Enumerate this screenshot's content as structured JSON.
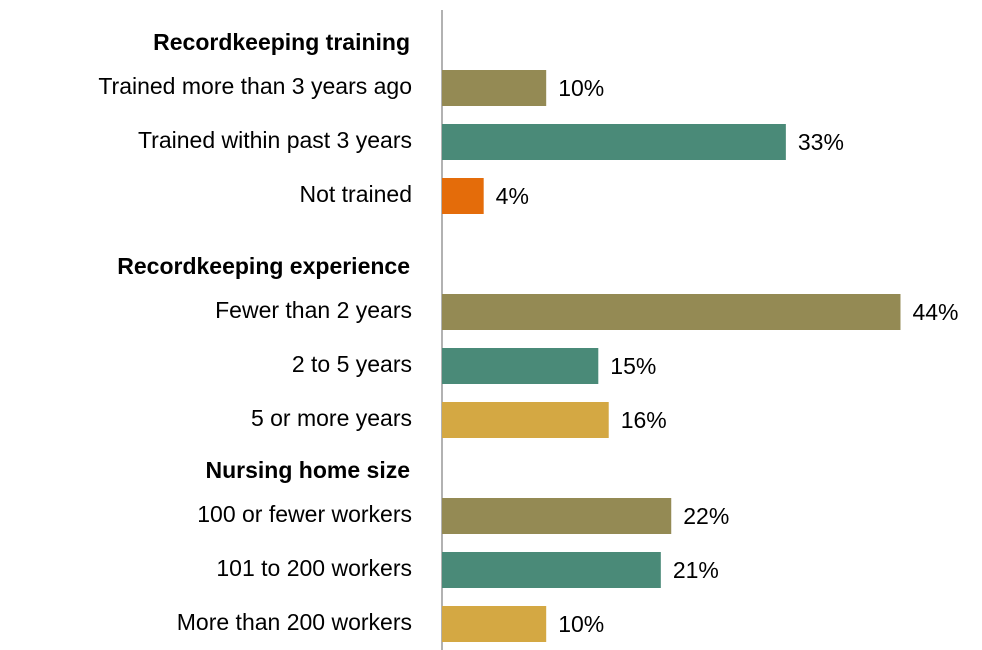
{
  "chart_data": {
    "type": "bar",
    "orientation": "horizontal",
    "xlim": [
      0,
      50
    ],
    "groups": [
      {
        "title": "Recordkeeping training",
        "categories": [
          "Trained more than 3 years ago",
          "Trained within past 3 years",
          "Not trained"
        ],
        "values": [
          10,
          33,
          4
        ],
        "value_labels": [
          "10%",
          "33%",
          "4%"
        ],
        "colors": [
          "#948a54",
          "#4a8a78",
          "#e46c0a"
        ]
      },
      {
        "title": "Recordkeeping experience",
        "categories": [
          "Fewer than 2 years",
          "2 to 5 years",
          "5 or more years"
        ],
        "values": [
          44,
          15,
          16
        ],
        "value_labels": [
          "44%",
          "15%",
          "16%"
        ],
        "colors": [
          "#948a54",
          "#4a8a78",
          "#d4a843"
        ]
      },
      {
        "title": "Nursing home size",
        "categories": [
          "100 or fewer workers",
          "101 to 200 workers",
          "More than 200 workers"
        ],
        "values": [
          22,
          21,
          10
        ],
        "value_labels": [
          "22%",
          "21%",
          "10%"
        ],
        "colors": [
          "#948a54",
          "#4a8a78",
          "#d4a843"
        ]
      }
    ]
  }
}
